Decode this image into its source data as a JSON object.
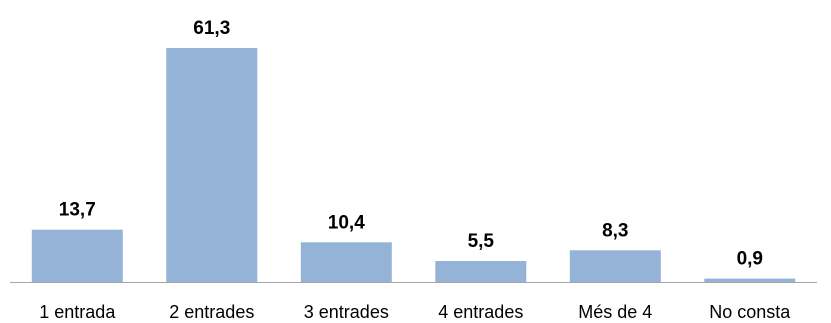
{
  "chart_data": {
    "type": "bar",
    "title": "",
    "xlabel": "",
    "ylabel": "",
    "categories": [
      "1 entrada",
      "2 entrades",
      "3 entrades",
      "4 entrades",
      "Més de 4",
      "No consta"
    ],
    "values": [
      13.7,
      61.3,
      10.4,
      5.5,
      8.3,
      0.9
    ],
    "data_labels": [
      "13,7",
      "61,3",
      "10,4",
      "5,5",
      "8,3",
      "0,9"
    ],
    "ylim": [
      0,
      61.3
    ],
    "grid": false,
    "legend": "none",
    "colors": {
      "bar": "#95B3D7",
      "baseline": "#A6A6A6",
      "text": "#000000"
    }
  }
}
